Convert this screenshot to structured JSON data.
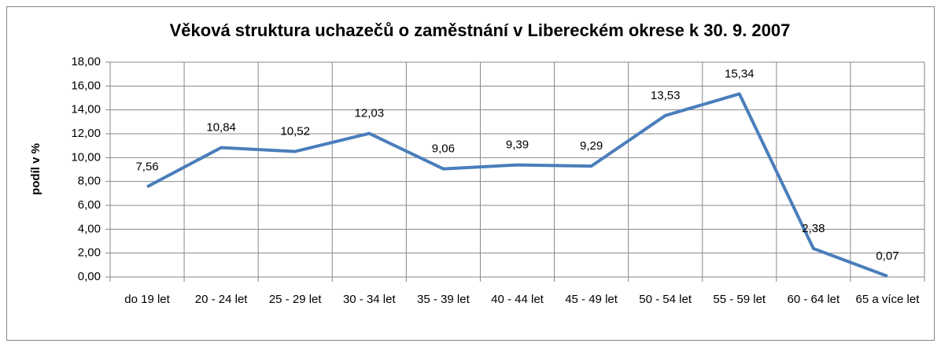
{
  "chart_data": {
    "type": "line",
    "title": "Věková struktura uchazečů o zaměstnání v Libereckém okrese k 30. 9. 2007",
    "ylabel": "podíl v %",
    "categories": [
      "do 19 let",
      "20 - 24 let",
      "25 - 29 let",
      "30 - 34 let",
      "35 - 39 let",
      "40 - 44 let",
      "45 - 49 let",
      "50 - 54 let",
      "55 - 59 let",
      "60 - 64 let",
      "65 a více let"
    ],
    "series": [
      {
        "name": "podíl v %",
        "color": "#4a7ebb",
        "values": [
          7.56,
          10.84,
          10.52,
          12.03,
          9.06,
          9.39,
          9.29,
          13.53,
          15.34,
          2.38,
          0.07
        ],
        "value_labels": [
          "7,56",
          "10,84",
          "10,52",
          "12,03",
          "9,06",
          "9,39",
          "9,29",
          "13,53",
          "15,34",
          "2,38",
          "0,07"
        ]
      }
    ],
    "ylim": [
      0,
      18
    ],
    "yticks": [
      {
        "value": 0,
        "label": "0,00"
      },
      {
        "value": 2,
        "label": "2,00"
      },
      {
        "value": 4,
        "label": "4,00"
      },
      {
        "value": 6,
        "label": "6,00"
      },
      {
        "value": 8,
        "label": "8,00"
      },
      {
        "value": 10,
        "label": "10,00"
      },
      {
        "value": 12,
        "label": "12,00"
      },
      {
        "value": 14,
        "label": "14,00"
      },
      {
        "value": 16,
        "label": "16,00"
      },
      {
        "value": 18,
        "label": "18,00"
      }
    ],
    "grid": true
  }
}
